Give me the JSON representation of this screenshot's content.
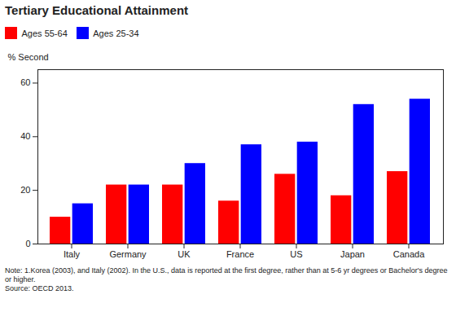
{
  "chart_data": {
    "type": "bar",
    "title": "Tertiary Educational Attainment",
    "ylabel": "% Second",
    "categories": [
      "Italy",
      "Germany",
      "UK",
      "France",
      "US",
      "Japan",
      "Canada"
    ],
    "series": [
      {
        "name": "Ages 55-64",
        "color": "#FF0000",
        "values": [
          10,
          22,
          22,
          16,
          26,
          18,
          27
        ]
      },
      {
        "name": "Ages 25-34",
        "color": "#0000FF",
        "values": [
          15,
          22,
          30,
          37,
          38,
          52,
          54
        ]
      }
    ],
    "ylim": [
      0,
      65
    ],
    "yticks": [
      0,
      20,
      40,
      60
    ],
    "grid": false,
    "legend": "upper left",
    "annotations": [
      "Note: 1.Korea (2003), and Italy (2002). In the U.S., data is reported at the first degree, rather than at 5-6 yr degrees or Bachelor's degree or higher.\nSource: OECD 2013."
    ]
  }
}
